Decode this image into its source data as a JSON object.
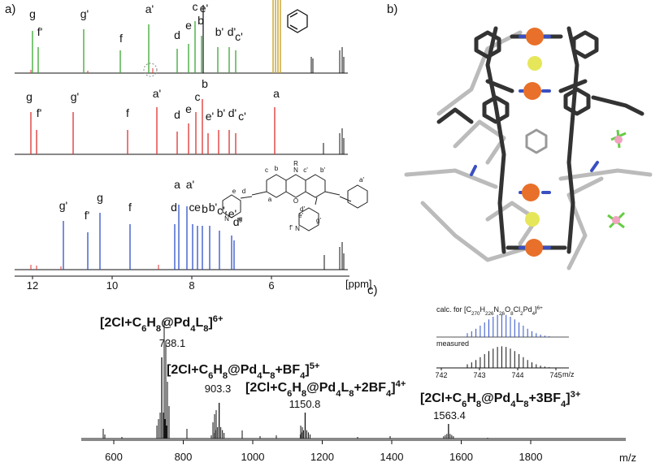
{
  "panels": {
    "a": {
      "label": "a)",
      "spectra": [
        {
          "peak_labels": [
            "g",
            "f'",
            "g'",
            "f",
            "a'",
            "d",
            "e",
            "c",
            "e'",
            "b",
            "b'",
            "d'",
            "c'"
          ]
        },
        {
          "peak_labels": [
            "g",
            "f'",
            "g'",
            "f",
            "a'",
            "d",
            "e",
            "c",
            "b",
            "e'",
            "b'",
            "d'",
            "c'",
            "a"
          ]
        },
        {
          "peak_labels": [
            "g'",
            "f'",
            "g",
            "f",
            "d",
            "a",
            "a'",
            "c",
            "e",
            "b",
            "b'",
            "c'",
            "e'",
            "d'"
          ]
        }
      ],
      "axis": {
        "ticks": [
          12,
          10,
          8,
          6
        ],
        "unit": "[ppm]"
      },
      "structure": {
        "labels": [
          "c",
          "b",
          "N",
          "R",
          "c'",
          "b'",
          "a'",
          "d",
          "a",
          "O",
          "e",
          "f",
          "N",
          "g",
          "d'",
          "e'",
          "N",
          "f'",
          "g'"
        ]
      }
    },
    "b": {
      "label": "b)"
    },
    "c": {
      "label": "c)",
      "peaks": [
        {
          "ion": [
            "[2Cl+C",
            "6",
            "H",
            "8",
            "@Pd",
            "4",
            "L",
            "8",
            "]",
            "6+"
          ],
          "mz": 738.1
        },
        {
          "ion": [
            "[2Cl+C",
            "6",
            "H",
            "8",
            "@Pd",
            "4",
            "L",
            "8",
            "+BF",
            "4",
            "]",
            "5+"
          ],
          "mz": 903.3
        },
        {
          "ion": [
            "[2Cl+C",
            "6",
            "H",
            "8",
            "@Pd",
            "4",
            "L",
            "8",
            "+2BF",
            "4",
            "]",
            "4+"
          ],
          "mz": 1150.8
        },
        {
          "ion": [
            "[2Cl+C",
            "6",
            "H",
            "8",
            "@Pd",
            "4",
            "L",
            "8",
            "+3BF",
            "4",
            "]",
            "3+"
          ],
          "mz": 1563.4
        }
      ],
      "axis": {
        "ticks": [
          600,
          800,
          1000,
          1200,
          1400,
          1600,
          1800
        ],
        "unit": "m/z"
      },
      "inset": {
        "calc": [
          "calc. for [C",
          "270",
          "H",
          "226",
          "N",
          "26",
          "O",
          "8",
          "Cl",
          "2",
          "Pd",
          "4",
          "]",
          "6+"
        ],
        "measured": "measured",
        "ticks": [
          742,
          743,
          744,
          745
        ],
        "unit": "m/z"
      }
    }
  }
}
